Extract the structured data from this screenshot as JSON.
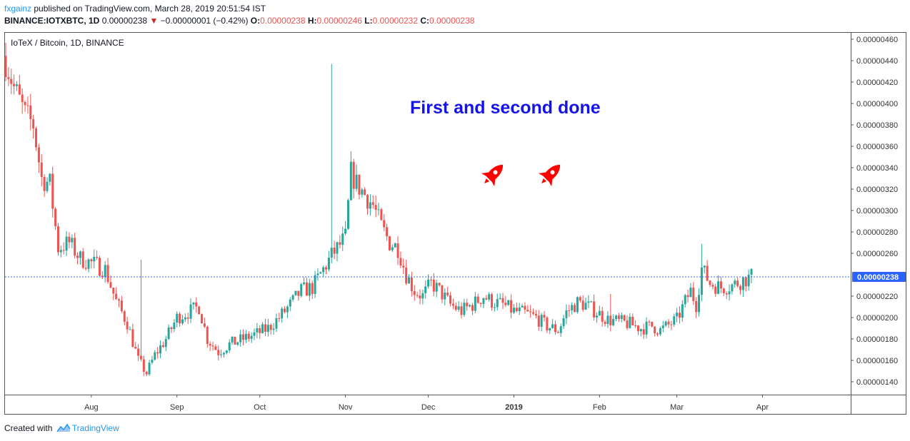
{
  "header": {
    "author": "fxgainz",
    "published_text": "published on TradingView.com, March 28, 2019 20:51:54 IST",
    "symbol_line": "BINANCE:IOTXBTC, 1D",
    "last": "0.00000238",
    "change": "−0.00000001 (−0.42%)",
    "o_label": "O:",
    "o_value": "0.00000238",
    "h_label": "H:",
    "h_value": "0.00000246",
    "l_label": "L:",
    "l_value": "0.00000232",
    "c_label": "C:",
    "c_value": "0.00000238"
  },
  "footer": {
    "created_with": "Created with",
    "brand": "TradingView"
  },
  "colors": {
    "up": "#26a69a",
    "down": "#ef5350",
    "annotation": "#1414e6",
    "rocket": "#ff0000",
    "price_line": "#2962ff",
    "axis": "#555555"
  },
  "chart_data": {
    "type": "candlestick",
    "title": "IoTeX / Bitcoin, 1D, BINANCE",
    "annotation": "First and second done",
    "icons": [
      "rocket-icon",
      "rocket-icon"
    ],
    "ylim": [
      1.28e-06,
      4.66e-06
    ],
    "y_ticks": [
      "0.00000460",
      "0.00000440",
      "0.00000420",
      "0.00000400",
      "0.00000380",
      "0.00000360",
      "0.00000340",
      "0.00000320",
      "0.00000300",
      "0.00000280",
      "0.00000260",
      "0.00000220",
      "0.00000200",
      "0.00000180",
      "0.00000160",
      "0.00000140"
    ],
    "last_price_label": "0.00000238",
    "last_price": 2.38e-06,
    "x_ticks": [
      {
        "label": "Aug",
        "date": "2018-08-01"
      },
      {
        "label": "Sep",
        "date": "2018-09-01"
      },
      {
        "label": "Oct",
        "date": "2018-10-01"
      },
      {
        "label": "Nov",
        "date": "2018-11-01"
      },
      {
        "label": "Dec",
        "date": "2018-12-01"
      },
      {
        "label": "2019",
        "date": "2019-01-01",
        "bold": true
      },
      {
        "label": "Feb",
        "date": "2019-02-01"
      },
      {
        "label": "Mar",
        "date": "2019-03-01"
      },
      {
        "label": "Apr",
        "date": "2019-04-01"
      }
    ],
    "date_range": [
      "2018-07-01",
      "2019-03-28"
    ],
    "close_path": [
      [
        "2018-07-01",
        4.4e-06
      ],
      [
        "2018-07-04",
        4.15e-06
      ],
      [
        "2018-07-08",
        3.9e-06
      ],
      [
        "2018-07-11",
        3.8e-06
      ],
      [
        "2018-07-14",
        3.3e-06
      ],
      [
        "2018-07-17",
        3.25e-06
      ],
      [
        "2018-07-20",
        2.65e-06
      ],
      [
        "2018-07-24",
        2.7e-06
      ],
      [
        "2018-07-28",
        2.55e-06
      ],
      [
        "2018-08-02",
        2.5e-06
      ],
      [
        "2018-08-06",
        2.45e-06
      ],
      [
        "2018-08-10",
        2.15e-06
      ],
      [
        "2018-08-14",
        1.95e-06
      ],
      [
        "2018-08-18",
        1.6e-06
      ],
      [
        "2018-08-21",
        1.48e-06
      ],
      [
        "2018-08-24",
        1.65e-06
      ],
      [
        "2018-08-28",
        1.8e-06
      ],
      [
        "2018-09-01",
        2e-06
      ],
      [
        "2018-09-05",
        2.05e-06
      ],
      [
        "2018-09-09",
        2.1e-06
      ],
      [
        "2018-09-12",
        1.8e-06
      ],
      [
        "2018-09-16",
        1.68e-06
      ],
      [
        "2018-09-20",
        1.75e-06
      ],
      [
        "2018-09-25",
        1.8e-06
      ],
      [
        "2018-09-30",
        1.85e-06
      ],
      [
        "2018-10-04",
        1.9e-06
      ],
      [
        "2018-10-08",
        2e-06
      ],
      [
        "2018-10-12",
        2.12e-06
      ],
      [
        "2018-10-16",
        2.25e-06
      ],
      [
        "2018-10-20",
        2.28e-06
      ],
      [
        "2018-10-24",
        2.45e-06
      ],
      [
        "2018-10-27",
        2.58e-06
      ],
      [
        "2018-10-30",
        2.68e-06
      ],
      [
        "2018-11-01",
        2.75e-06
      ],
      [
        "2018-11-03",
        3.35e-06
      ],
      [
        "2018-11-05",
        3.25e-06
      ],
      [
        "2018-11-08",
        3.15e-06
      ],
      [
        "2018-11-11",
        3.05e-06
      ],
      [
        "2018-11-14",
        2.85e-06
      ],
      [
        "2018-11-17",
        2.7e-06
      ],
      [
        "2018-11-20",
        2.65e-06
      ],
      [
        "2018-11-23",
        2.4e-06
      ],
      [
        "2018-11-26",
        2.25e-06
      ],
      [
        "2018-11-29",
        2.2e-06
      ],
      [
        "2018-12-02",
        2.32e-06
      ],
      [
        "2018-12-05",
        2.25e-06
      ],
      [
        "2018-12-09",
        2.12e-06
      ],
      [
        "2018-12-13",
        2.06e-06
      ],
      [
        "2018-12-17",
        2.12e-06
      ],
      [
        "2018-12-21",
        2.2e-06
      ],
      [
        "2018-12-24",
        2.15e-06
      ],
      [
        "2018-12-28",
        2.12e-06
      ],
      [
        "2019-01-01",
        2.06e-06
      ],
      [
        "2019-01-05",
        2.04e-06
      ],
      [
        "2019-01-09",
        2e-06
      ],
      [
        "2019-01-13",
        1.92e-06
      ],
      [
        "2019-01-17",
        1.88e-06
      ],
      [
        "2019-01-20",
        2.05e-06
      ],
      [
        "2019-01-24",
        2.14e-06
      ],
      [
        "2019-01-27",
        2.12e-06
      ],
      [
        "2019-01-31",
        2.05e-06
      ],
      [
        "2019-02-04",
        1.98e-06
      ],
      [
        "2019-02-08",
        1.96e-06
      ],
      [
        "2019-02-12",
        1.94e-06
      ],
      [
        "2019-02-16",
        1.9e-06
      ],
      [
        "2019-02-20",
        1.92e-06
      ],
      [
        "2019-02-23",
        1.88e-06
      ],
      [
        "2019-02-26",
        1.93e-06
      ],
      [
        "2019-03-01",
        1.98e-06
      ],
      [
        "2019-03-04",
        2.15e-06
      ],
      [
        "2019-03-06",
        2.25e-06
      ],
      [
        "2019-03-08",
        2.12e-06
      ],
      [
        "2019-03-10",
        2.46e-06
      ],
      [
        "2019-03-13",
        2.32e-06
      ],
      [
        "2019-03-17",
        2.28e-06
      ],
      [
        "2019-03-21",
        2.3e-06
      ],
      [
        "2019-03-25",
        2.35e-06
      ],
      [
        "2019-03-28",
        2.38e-06
      ]
    ],
    "spikes": [
      [
        "2018-08-19",
        2.54e-06
      ],
      [
        "2018-10-27",
        4.37e-06
      ],
      [
        "2018-11-04",
        3.45e-06
      ],
      [
        "2019-02-05",
        2.22e-06
      ],
      [
        "2019-03-10",
        2.69e-06
      ]
    ]
  }
}
